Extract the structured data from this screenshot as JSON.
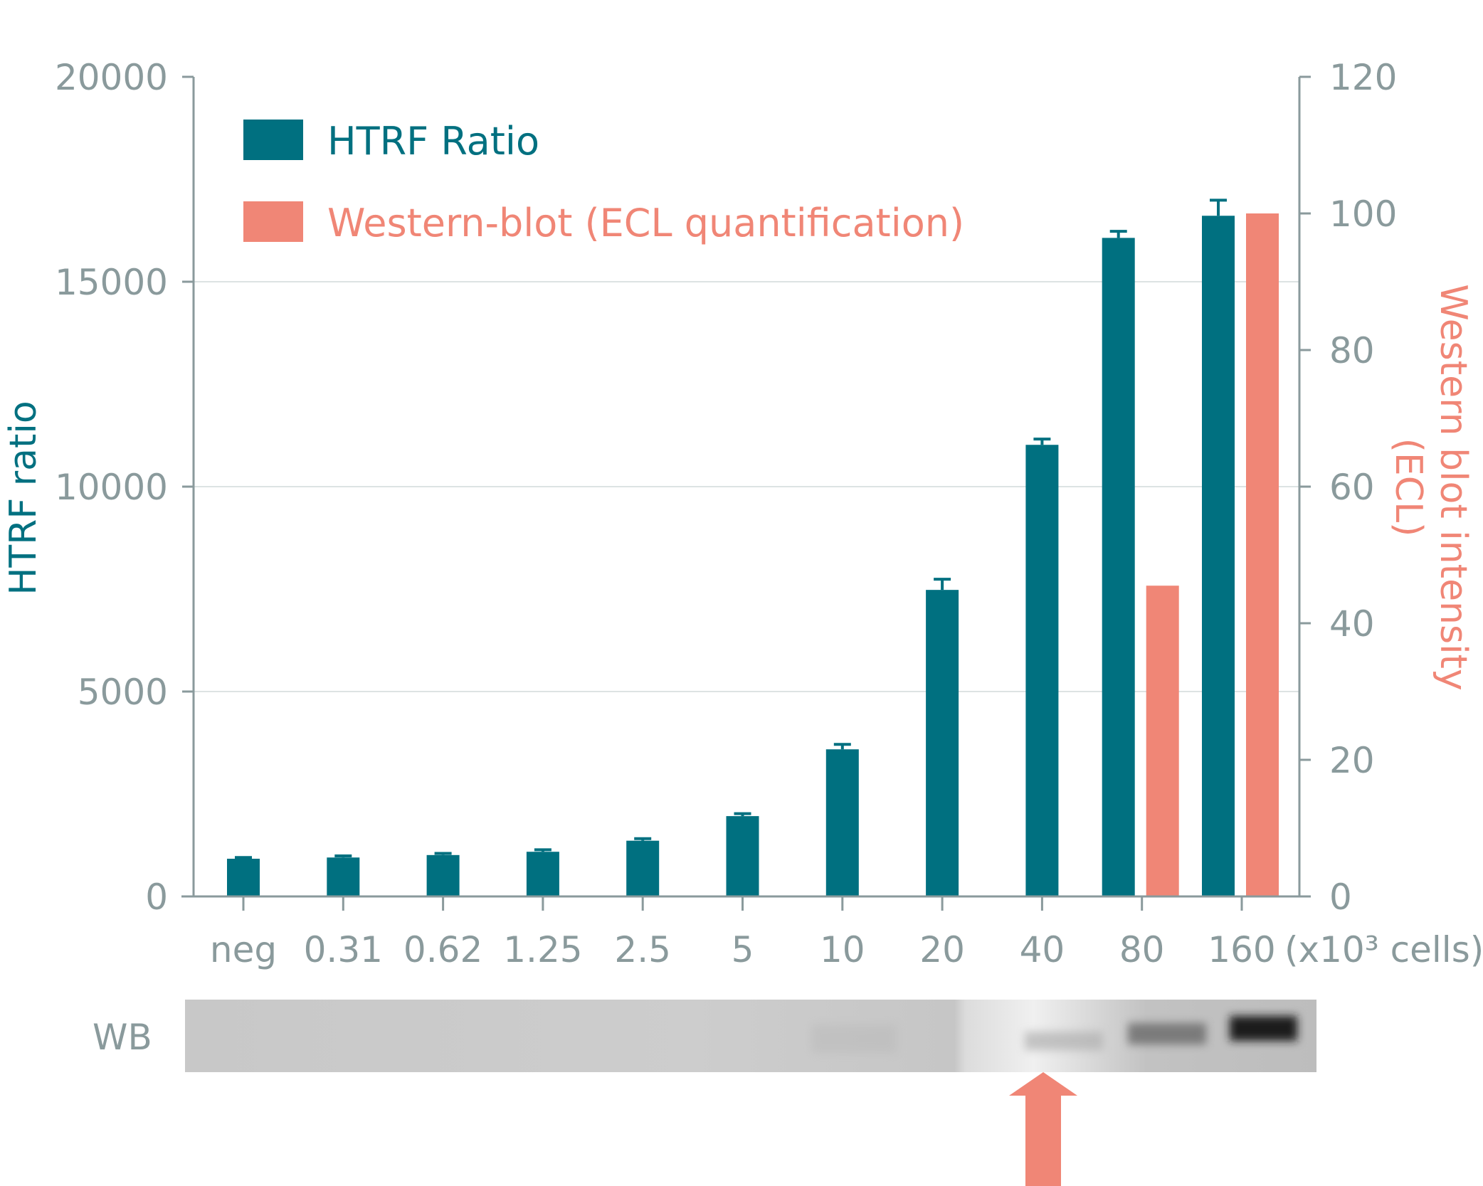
{
  "colors": {
    "htrf": "#007080",
    "wb": "#f08676",
    "axis": "#8a9a9c",
    "grid": "#dde3e3",
    "tick_text": "#8a9a9c"
  },
  "legend": {
    "htrf_label": "HTRF Ratio",
    "wb_label": "Western-blot (ECL quantification)"
  },
  "y_left_title": "HTRF ratio",
  "y_right_title_line1": "Western blot intensity",
  "y_right_title_line2": "(ECL)",
  "x_unit_label": "(x10³ cells)",
  "wb_label": "WB",
  "chart_data": {
    "type": "bar",
    "categories": [
      "neg",
      "0.31",
      "0.62",
      "1.25",
      "2.5",
      "5",
      "10",
      "20",
      "40",
      "80",
      "160"
    ],
    "y_left": {
      "ticks": [
        "0",
        "5000",
        "10000",
        "15000",
        "20000"
      ],
      "lim": [
        0,
        20000
      ]
    },
    "y_right": {
      "ticks": [
        "0",
        "20",
        "40",
        "60",
        "80",
        "100",
        "120"
      ],
      "lim": [
        0,
        120
      ]
    },
    "grid": true,
    "legend_position": "top-left",
    "series": [
      {
        "name": "HTRF Ratio",
        "axis": "left",
        "values": [
          920,
          950,
          1010,
          1090,
          1360,
          1960,
          3590,
          7480,
          11020,
          16070,
          16610
        ],
        "errors": [
          30,
          40,
          40,
          50,
          50,
          60,
          120,
          260,
          140,
          160,
          380
        ]
      },
      {
        "name": "Western-blot (ECL quantification)",
        "axis": "right",
        "values": [
          null,
          null,
          null,
          null,
          null,
          null,
          null,
          null,
          null,
          45.5,
          100
        ]
      }
    ]
  }
}
